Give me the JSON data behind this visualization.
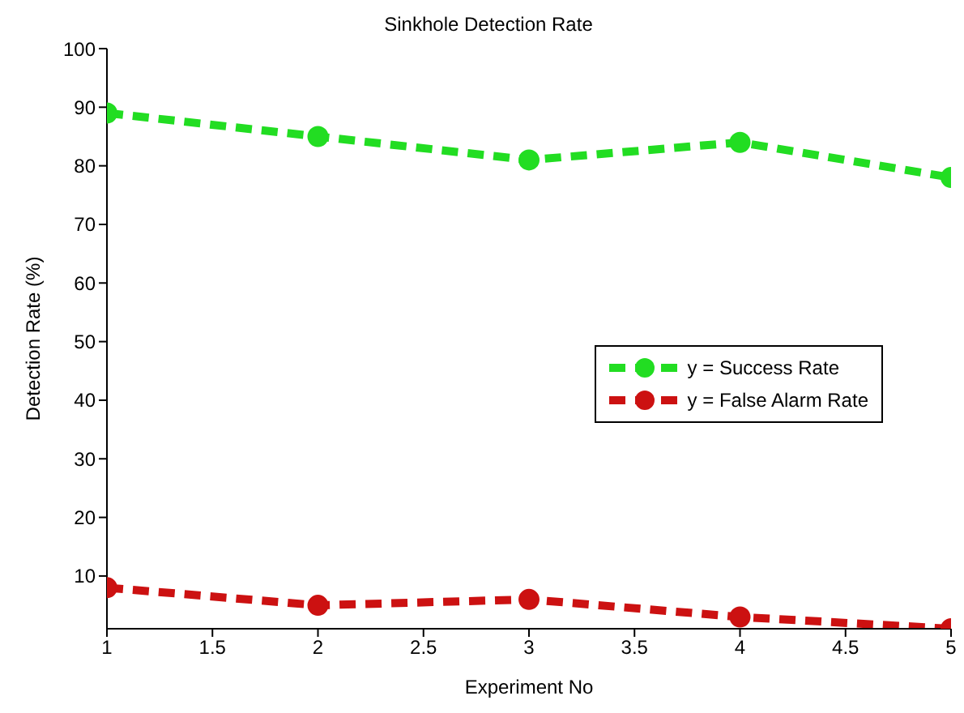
{
  "chart_data": {
    "type": "line",
    "title": "Sinkhole Detection Rate",
    "xlabel": "Experiment No",
    "ylabel": "Detection Rate (%)",
    "x": [
      1,
      2,
      3,
      4,
      5
    ],
    "series": [
      {
        "name": "y = Success Rate",
        "color": "#22dd22",
        "values": [
          89,
          85,
          81,
          84,
          78
        ]
      },
      {
        "name": "y = False Alarm Rate",
        "color": "#cc1111",
        "values": [
          8,
          5,
          6,
          3,
          1
        ]
      }
    ],
    "xlim": [
      1,
      5
    ],
    "xticks": [
      1,
      1.5,
      2,
      2.5,
      3,
      3.5,
      4,
      4.5,
      5
    ],
    "ylim": [
      1,
      100
    ],
    "yticks": [
      10,
      20,
      30,
      40,
      50,
      60,
      70,
      80,
      90,
      100
    ],
    "grid": false,
    "legend": "right",
    "marker": "circle",
    "line_style": "dashed"
  }
}
